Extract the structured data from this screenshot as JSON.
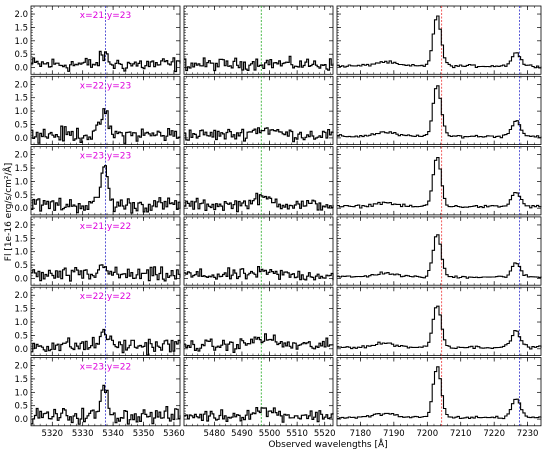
{
  "chart_data": {
    "type": "line",
    "xlabel": "Observed wavelengths [Å]",
    "ylabel": "Fl [1e-16 erg/s/cm²/Å]",
    "ylim": [
      -0.25,
      2.3
    ],
    "yticks": [
      0.0,
      0.5,
      1.0,
      1.5,
      2.0
    ],
    "ytick_labels": [
      "0.0",
      "0.5",
      "1.0",
      "1.5",
      "2.0"
    ],
    "colors": {
      "spectrum": "#000000",
      "line_blue": "#3333cc",
      "line_green": "#22aa22",
      "line_red": "#ee3333",
      "label": "#dd00dd"
    },
    "columns": [
      {
        "xlim": [
          5313,
          5362
        ],
        "xticks": [
          5320,
          5330,
          5340,
          5350,
          5360
        ],
        "xtick_labels": [
          "5320",
          "5330",
          "5340",
          "5350",
          "5360"
        ],
        "marker": {
          "x": 5337.5,
          "color_key": "line_blue"
        }
      },
      {
        "xlim": [
          5469,
          5523
        ],
        "xticks": [
          5480,
          5490,
          5500,
          5510,
          5520
        ],
        "xtick_labels": [
          "5480",
          "5490",
          "5500",
          "5510",
          "5520"
        ],
        "marker": {
          "x": 5497.0,
          "color_key": "line_green"
        }
      },
      {
        "xlim": [
          7173,
          7234
        ],
        "xticks": [
          7180,
          7190,
          7200,
          7210,
          7220,
          7230
        ],
        "xtick_labels": [
          "7180",
          "7190",
          "7200",
          "7210",
          "7220",
          "7230"
        ],
        "markers": [
          {
            "x": 7204.3,
            "color_key": "line_red"
          },
          {
            "x": 7227.6,
            "color_key": "line_blue"
          }
        ]
      }
    ],
    "rows": [
      {
        "label": "x=21,y=23",
        "peak_blue": 0.35,
        "peak_green": 0.1,
        "peak_red": 1.85,
        "peak_red2": 0.5
      },
      {
        "label": "x=22,y=23",
        "peak_blue": 0.9,
        "peak_green": 0.35,
        "peak_red": 1.9,
        "peak_red2": 0.6
      },
      {
        "label": "x=23,y=23",
        "peak_blue": 1.5,
        "peak_green": 0.4,
        "peak_red": 1.85,
        "peak_red2": 0.55
      },
      {
        "label": "x=21,y=22",
        "peak_blue": 0.5,
        "peak_green": 0.15,
        "peak_red": 1.6,
        "peak_red2": 0.5
      },
      {
        "label": "x=22,y=22",
        "peak_blue": 0.6,
        "peak_green": 0.45,
        "peak_red": 1.6,
        "peak_red2": 0.6
      },
      {
        "label": "x=23,y=22",
        "peak_blue": 1.05,
        "peak_green": 0.35,
        "peak_red": 1.9,
        "peak_red2": 0.7
      }
    ]
  }
}
